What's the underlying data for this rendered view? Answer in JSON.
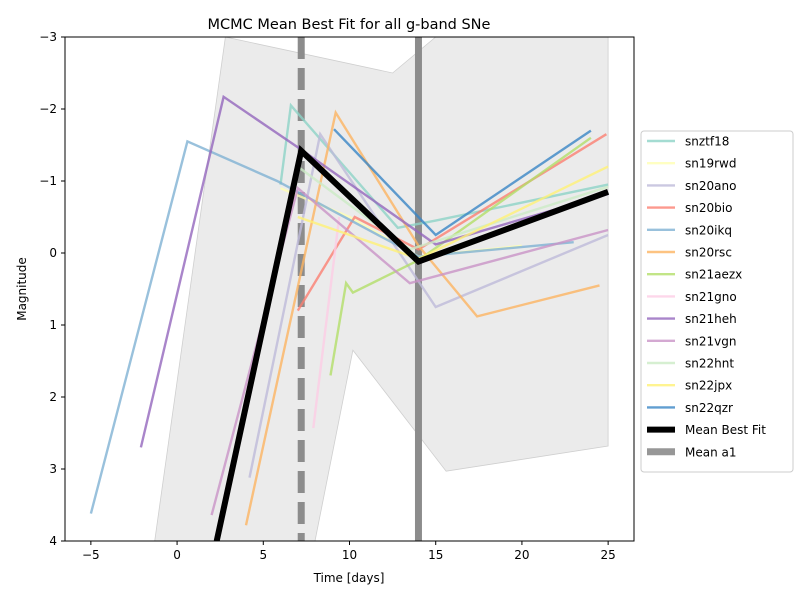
{
  "chart_data": {
    "type": "line",
    "title": "MCMC Mean Best Fit for all g-band SNe",
    "xlabel": "Time [days]",
    "ylabel": "Magnitude",
    "xlim": [
      -6.5,
      26.5
    ],
    "ylim": [
      4,
      -3
    ],
    "y_inverted": true,
    "grid": false,
    "legend_position": "outside-right",
    "x_ticks": [
      -5,
      0,
      5,
      10,
      15,
      20,
      25
    ],
    "y_ticks": [
      -3,
      -2,
      -1,
      0,
      1,
      2,
      3,
      4
    ],
    "x_tick_labels": [
      "−5",
      "0",
      "5",
      "10",
      "15",
      "20",
      "25"
    ],
    "y_tick_labels": [
      "−3",
      "−2",
      "−1",
      "0",
      "1",
      "2",
      "3",
      "4"
    ],
    "band": {
      "color": "#d3d3d3",
      "upper": {
        "x": [
          -1.3,
          2.8,
          12.5,
          15.0,
          25.0
        ],
        "y": [
          4.0,
          -3.0,
          -2.5,
          -3.0,
          -3.0
        ]
      },
      "lower": {
        "x": [
          25.0,
          15.6,
          10.2,
          8.0,
          -1.3
        ],
        "y": [
          2.68,
          3.03,
          1.35,
          4.0,
          4.0
        ]
      }
    },
    "vlines": [
      {
        "name": "Mean a1",
        "x": 7.2,
        "color": "#8c8c8c",
        "style": "dashed"
      },
      {
        "name": "",
        "x": 14.0,
        "color": "#8c8c8c",
        "style": "solid"
      }
    ],
    "series": [
      {
        "name": "snztf18",
        "color": "#8dd3c7",
        "x": [
          6.0,
          6.6,
          12.8,
          15.0,
          25.0
        ],
        "y": [
          -0.95,
          -2.05,
          -0.35,
          -0.45,
          -0.95
        ]
      },
      {
        "name": "sn19rwd",
        "color": "#ffffb3",
        "x": [
          6.0,
          10.0,
          14.0,
          20.0
        ],
        "y": [
          -0.9,
          -0.5,
          0.05,
          -0.1
        ]
      },
      {
        "name": "sn20ano",
        "color": "#bebada",
        "x": [
          4.2,
          8.3,
          15.0,
          25.0
        ],
        "y": [
          3.12,
          -1.65,
          0.75,
          -0.25
        ]
      },
      {
        "name": "sn20bio",
        "color": "#fb8072",
        "x": [
          7.0,
          10.3,
          14.0,
          24.9
        ],
        "y": [
          0.8,
          -0.5,
          -0.05,
          -1.65
        ]
      },
      {
        "name": "sn20ikq",
        "color": "#80b1d3",
        "x": [
          -5.0,
          0.6,
          5.8,
          14.0,
          23.0
        ],
        "y": [
          3.62,
          -1.55,
          -1.0,
          0.05,
          -0.15
        ]
      },
      {
        "name": "sn20rsc",
        "color": "#fdb462",
        "x": [
          4.0,
          9.2,
          14.0,
          17.4,
          24.5
        ],
        "y": [
          3.78,
          -1.95,
          -0.1,
          0.88,
          0.45
        ]
      },
      {
        "name": "sn21aezx",
        "color": "#b3de69",
        "x": [
          8.9,
          9.8,
          10.2,
          14.0,
          24.0
        ],
        "y": [
          1.7,
          0.42,
          0.55,
          0.1,
          -1.6
        ]
      },
      {
        "name": "sn21gno",
        "color": "#fccde5",
        "x": [
          7.9,
          9.4
        ],
        "y": [
          2.43,
          -0.5
        ]
      },
      {
        "name": "sn21heh",
        "color": "#9467bd",
        "x": [
          -2.1,
          2.7,
          7.3,
          15.0,
          25.0
        ],
        "y": [
          2.7,
          -2.17,
          -1.42,
          -0.12,
          -0.82
        ]
      },
      {
        "name": "sn21vgn",
        "color": "#c994c7",
        "x": [
          2.0,
          7.0,
          13.5,
          25.0
        ],
        "y": [
          3.64,
          -0.9,
          0.42,
          -0.32
        ]
      },
      {
        "name": "sn22hnt",
        "color": "#ccebc5",
        "x": [
          7.0,
          13.5,
          25.0
        ],
        "y": [
          -1.2,
          -0.05,
          -0.92
        ]
      },
      {
        "name": "sn22jpx",
        "color": "#fff176",
        "x": [
          7.0,
          14.0,
          25.0
        ],
        "y": [
          -0.5,
          0.08,
          -1.2
        ]
      },
      {
        "name": "sn22qzr",
        "color": "#3a86c6",
        "x": [
          9.1,
          15.0,
          24.0
        ],
        "y": [
          -1.72,
          -0.25,
          -1.7
        ]
      },
      {
        "name": "Mean Best Fit",
        "color": "#000000",
        "x": [
          2.3,
          7.2,
          14.0,
          25.0
        ],
        "y": [
          4.0,
          -1.42,
          0.12,
          -0.85
        ]
      }
    ],
    "legend": [
      {
        "label": "snztf18",
        "color": "#8dd3c7",
        "kind": "line"
      },
      {
        "label": "sn19rwd",
        "color": "#ffffb3",
        "kind": "line"
      },
      {
        "label": "sn20ano",
        "color": "#bebada",
        "kind": "line"
      },
      {
        "label": "sn20bio",
        "color": "#fb8072",
        "kind": "line"
      },
      {
        "label": "sn20ikq",
        "color": "#80b1d3",
        "kind": "line"
      },
      {
        "label": "sn20rsc",
        "color": "#fdb462",
        "kind": "line"
      },
      {
        "label": "sn21aezx",
        "color": "#b3de69",
        "kind": "line"
      },
      {
        "label": "sn21gno",
        "color": "#fccde5",
        "kind": "line"
      },
      {
        "label": "sn21heh",
        "color": "#9467bd",
        "kind": "line"
      },
      {
        "label": "sn21vgn",
        "color": "#c994c7",
        "kind": "line"
      },
      {
        "label": "sn22hnt",
        "color": "#ccebc5",
        "kind": "line"
      },
      {
        "label": "sn22jpx",
        "color": "#fff176",
        "kind": "line"
      },
      {
        "label": "sn22qzr",
        "color": "#3a86c6",
        "kind": "line"
      },
      {
        "label": "Mean Best Fit",
        "color": "#000000",
        "kind": "thick-line"
      },
      {
        "label": "Mean a1",
        "color": "#8c8c8c",
        "kind": "gray-line"
      }
    ]
  }
}
